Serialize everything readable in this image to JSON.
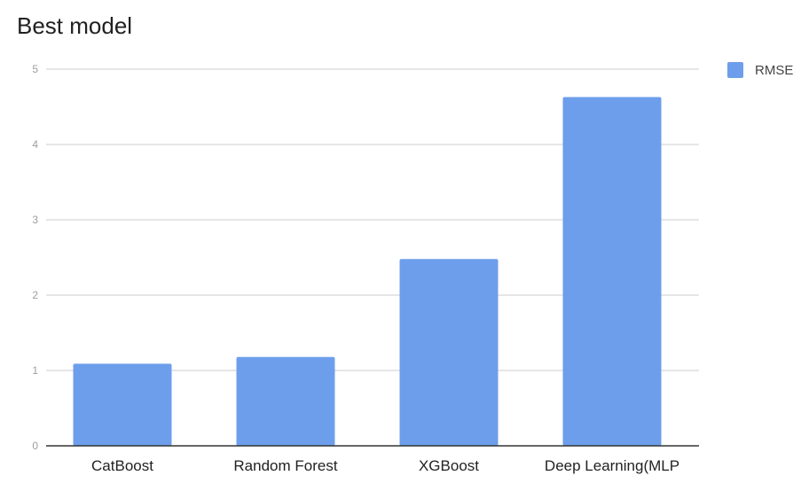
{
  "colors": {
    "bar": "#6d9eeb",
    "grid": "#cccccc",
    "axis": "#333333",
    "tick_text": "#9e9e9e",
    "category_text": "#222222",
    "title_text": "#212121"
  },
  "chart_data": {
    "type": "bar",
    "title": "Best model",
    "xlabel": "",
    "ylabel": "",
    "categories": [
      "CatBoost",
      "Random Forest",
      "XGBoost",
      "Deep Learning(MLP"
    ],
    "series": [
      {
        "name": "RMSE",
        "values": [
          1.09,
          1.18,
          2.48,
          4.63
        ]
      }
    ],
    "ylim": [
      0,
      5
    ],
    "yticks": [
      "0",
      "1",
      "2",
      "3",
      "4",
      "5"
    ],
    "grid": true,
    "legend_position": "top-right"
  }
}
